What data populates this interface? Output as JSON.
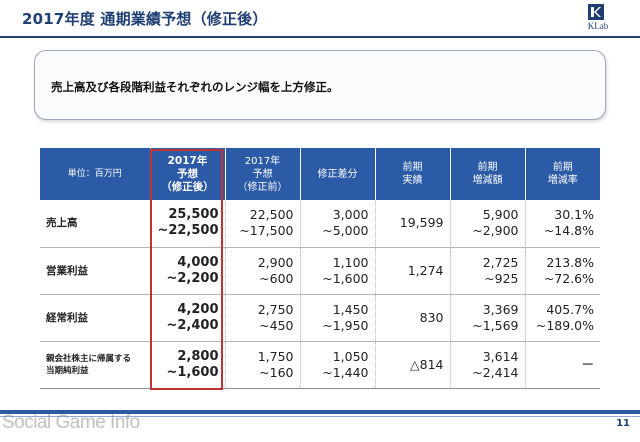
{
  "header": {
    "title": "2017年度 通期業績予想（修正後）",
    "logo_text": "KLab"
  },
  "callout": {
    "text": "売上高及び各段階利益それぞれのレンジ幅を上方修正。"
  },
  "table": {
    "unit_label": "単位：百万円",
    "columns": [
      {
        "lines": [
          "2017年",
          "予想",
          "（修正後）"
        ]
      },
      {
        "lines": [
          "2017年",
          "予想",
          "（修正前）"
        ]
      },
      {
        "lines": [
          "修正差分"
        ]
      },
      {
        "lines": [
          "前期",
          "実績"
        ]
      },
      {
        "lines": [
          "前期",
          "増減額"
        ]
      },
      {
        "lines": [
          "前期",
          "増減率"
        ]
      }
    ],
    "rows": [
      {
        "label_lines": [
          "売上高"
        ],
        "cells": [
          [
            "25,500",
            "~22,500"
          ],
          [
            "22,500",
            "~17,500"
          ],
          [
            "3,000",
            "~5,000"
          ],
          [
            "19,599"
          ],
          [
            "5,900",
            "~2,900"
          ],
          [
            "30.1%",
            "~14.8%"
          ]
        ]
      },
      {
        "label_lines": [
          "営業利益"
        ],
        "cells": [
          [
            "4,000",
            "~2,200"
          ],
          [
            "2,900",
            "~600"
          ],
          [
            "1,100",
            "~1,600"
          ],
          [
            "1,274"
          ],
          [
            "2,725",
            "~925"
          ],
          [
            "213.8%",
            "~72.6%"
          ]
        ]
      },
      {
        "label_lines": [
          "経常利益"
        ],
        "cells": [
          [
            "4,200",
            "~2,400"
          ],
          [
            "2,750",
            "~450"
          ],
          [
            "1,450",
            "~1,950"
          ],
          [
            "830"
          ],
          [
            "3,369",
            "~1,569"
          ],
          [
            "405.7%",
            "~189.0%"
          ]
        ]
      },
      {
        "label_lines": [
          "親会社株主に帰属する",
          "当期純利益"
        ],
        "cells": [
          [
            "2,800",
            "~1,600"
          ],
          [
            "1,750",
            "~160"
          ],
          [
            "1,050",
            "~1,440"
          ],
          [
            "△814"
          ],
          [
            "3,614",
            "~2,414"
          ],
          [
            "ー"
          ]
        ]
      }
    ]
  },
  "footer": {
    "page_number": "11",
    "watermark": "Social Game Info"
  },
  "colors": {
    "brand_navy": "#1f3e73",
    "header_blue": "#2b5aa6",
    "highlight_red": "#c0332f"
  }
}
